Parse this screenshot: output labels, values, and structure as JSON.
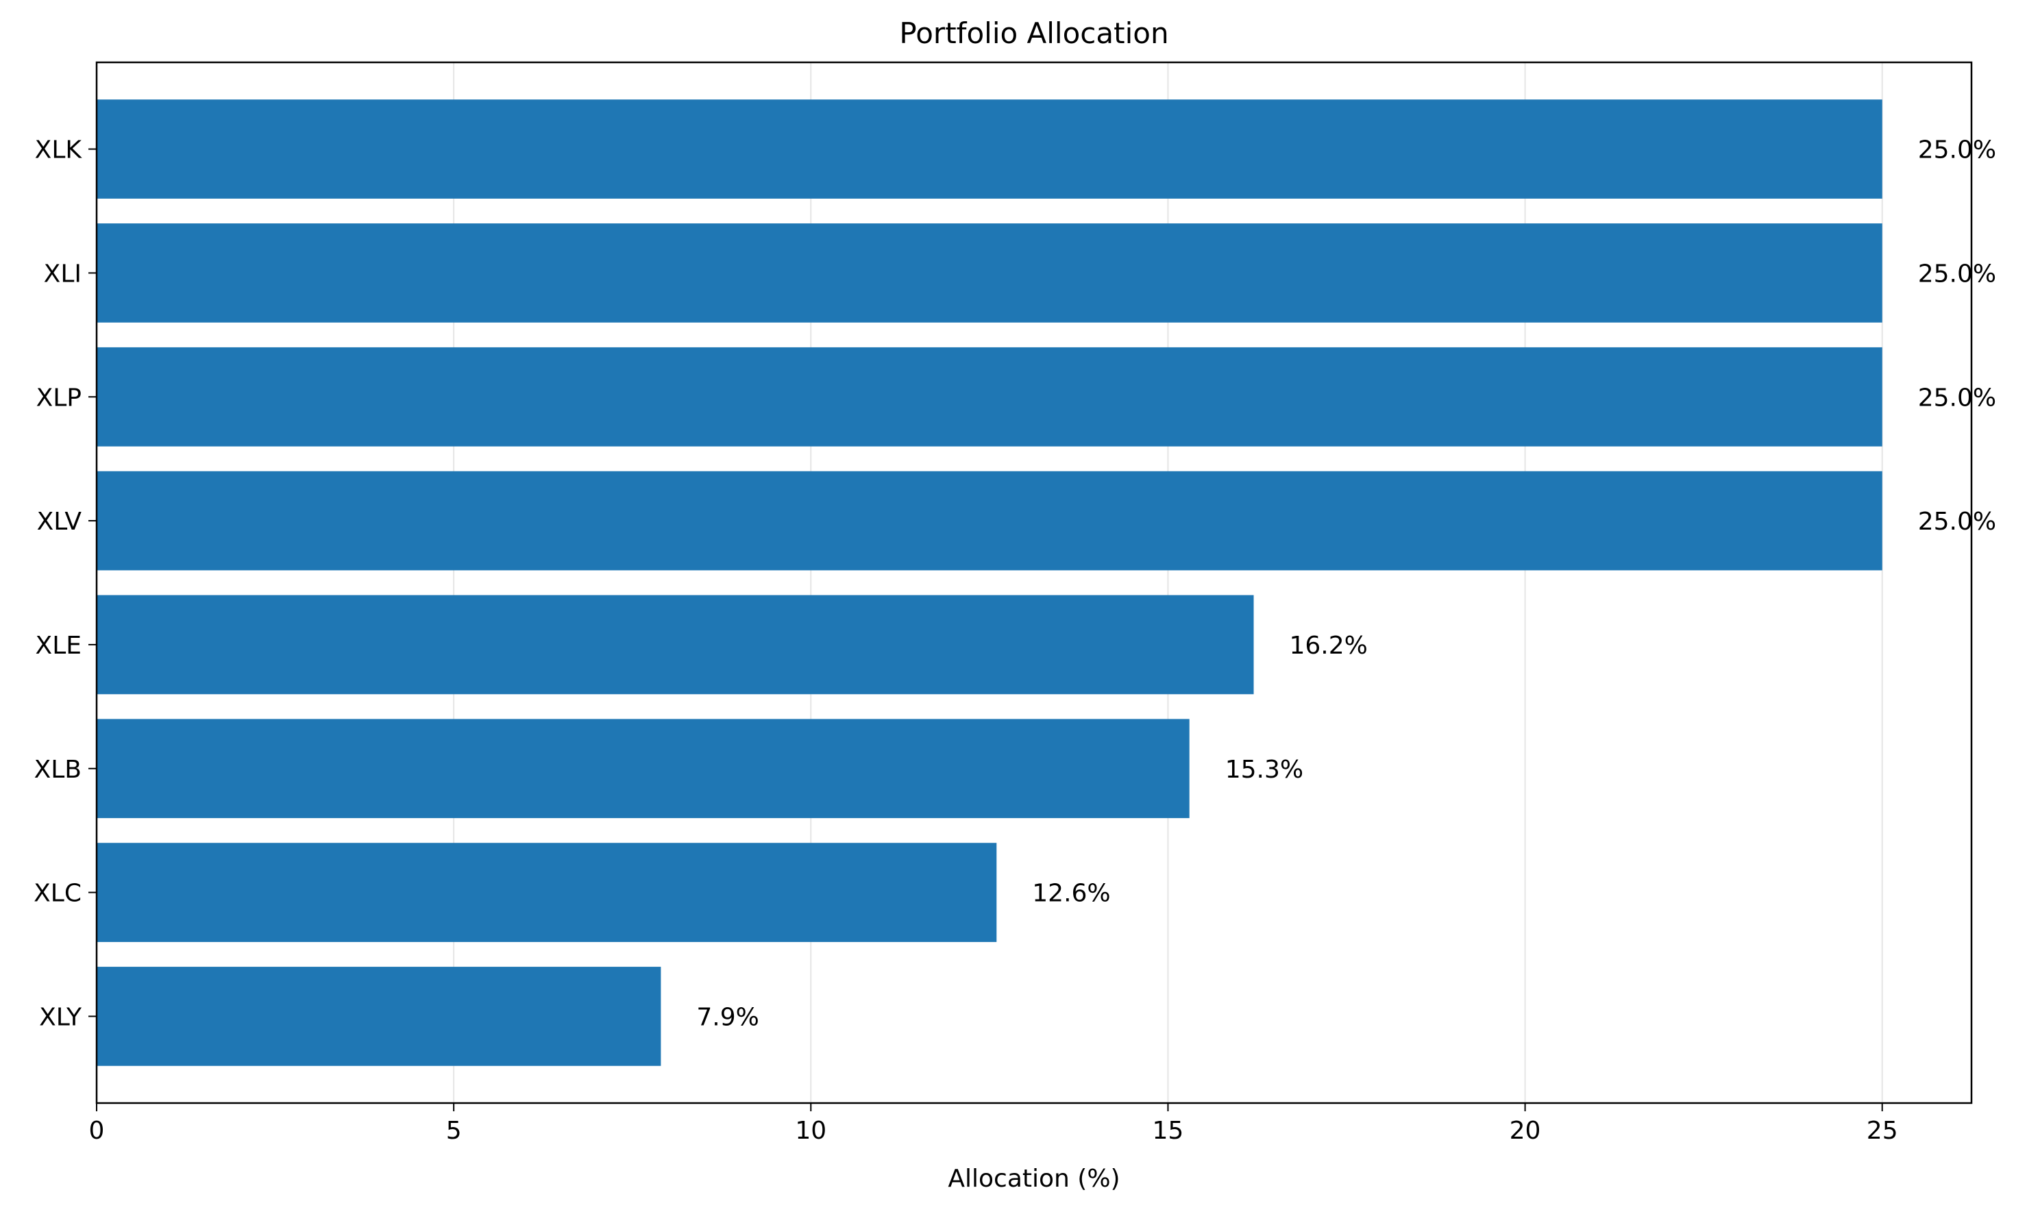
{
  "chart_data": {
    "type": "bar",
    "orientation": "horizontal",
    "title": "Portfolio Allocation",
    "xlabel": "Allocation (%)",
    "ylabel": "",
    "categories": [
      "XLK",
      "XLI",
      "XLP",
      "XLV",
      "XLE",
      "XLB",
      "XLC",
      "XLY"
    ],
    "values": [
      25.0,
      25.0,
      25.0,
      25.0,
      16.2,
      15.3,
      12.6,
      7.9
    ],
    "value_labels": [
      "25.0%",
      "25.0%",
      "25.0%",
      "25.0%",
      "16.2%",
      "15.3%",
      "12.6%",
      "7.9%"
    ],
    "xlim": [
      0,
      26.25
    ],
    "xticks": [
      0,
      5,
      10,
      15,
      20,
      25
    ],
    "xtick_labels": [
      "0",
      "5",
      "10",
      "15",
      "20",
      "25"
    ],
    "grid": "vertical",
    "bar_color": "#1f77b4",
    "grid_color": "#e5e5e5"
  }
}
